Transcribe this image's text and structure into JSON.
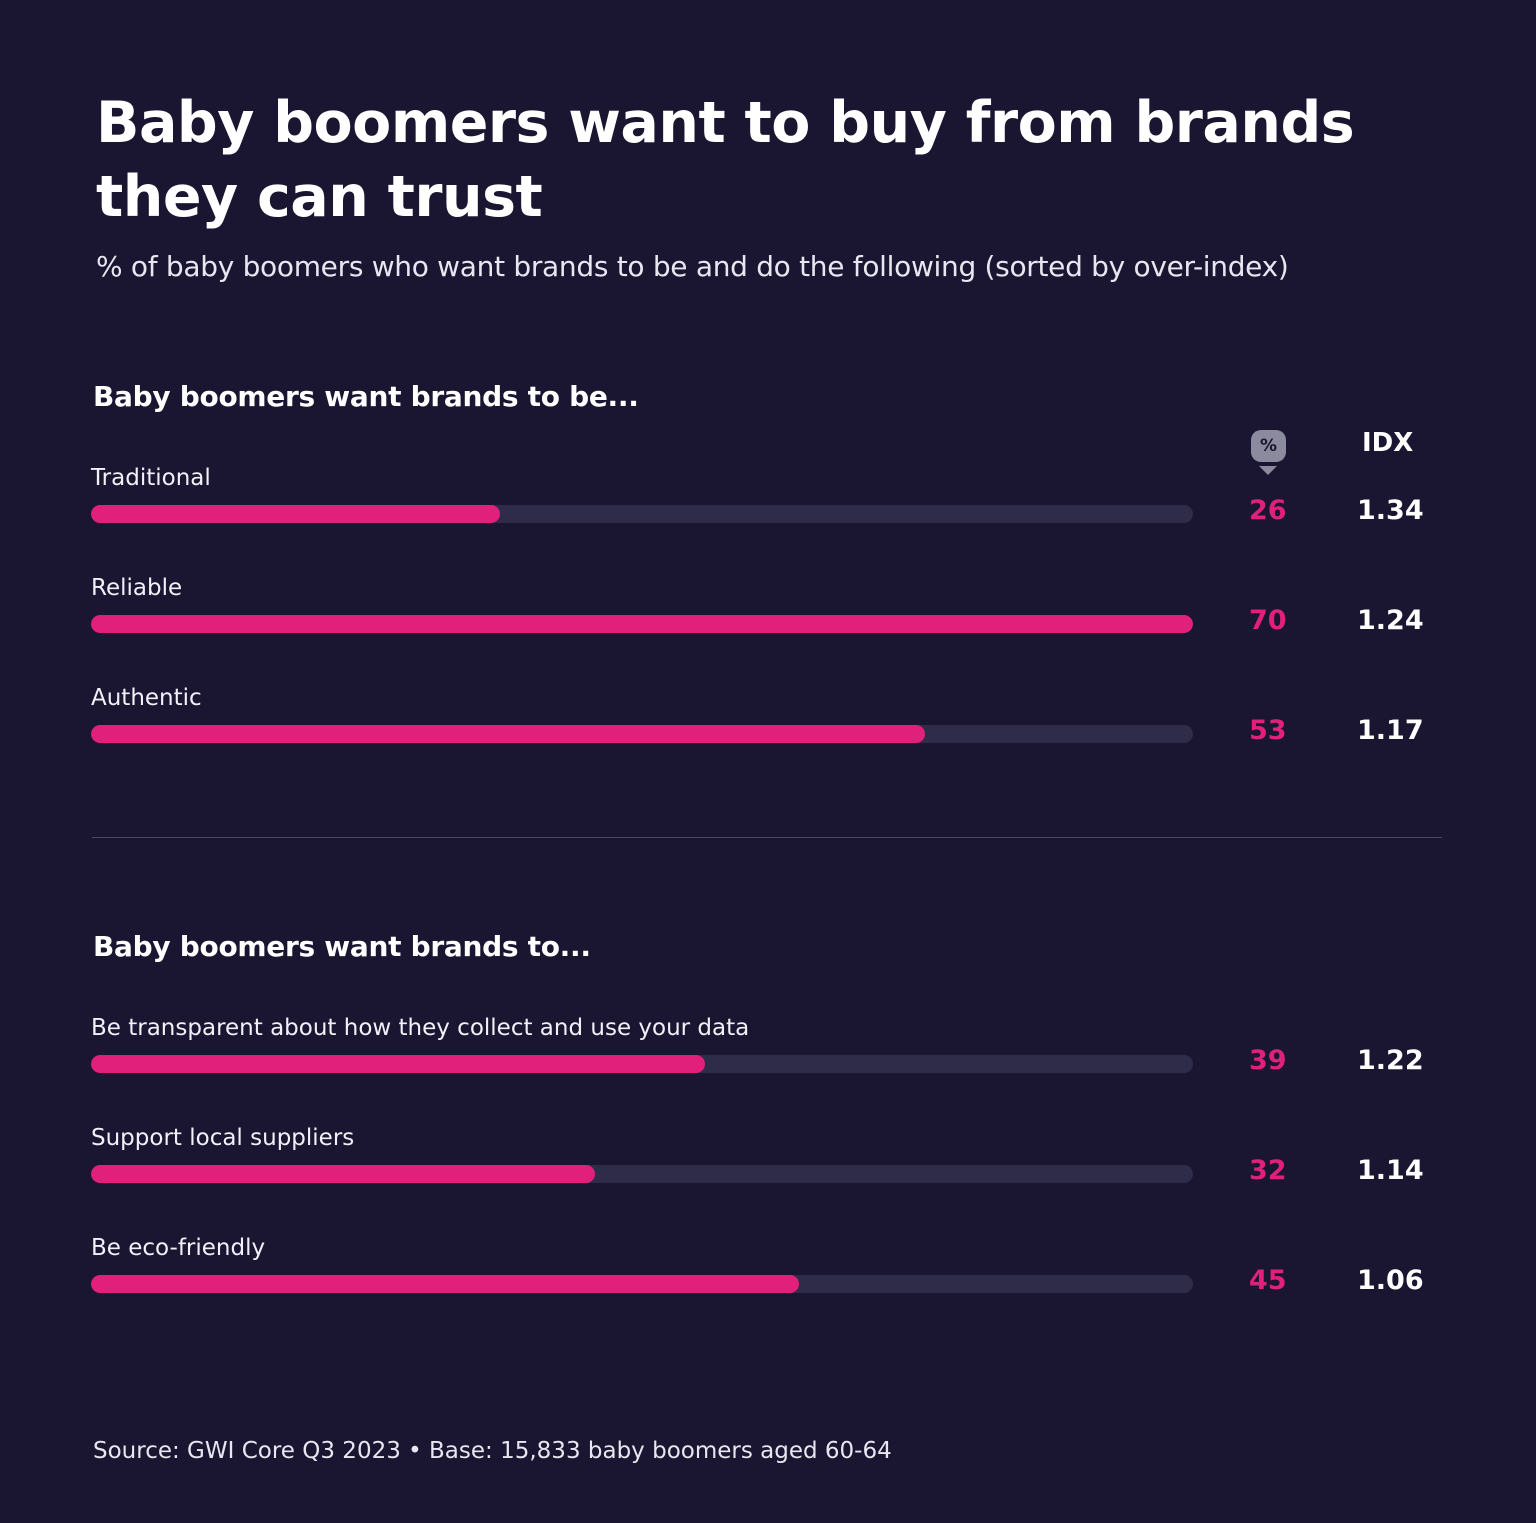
{
  "title": "Baby boomers want to buy from brands they can trust",
  "subtitle": "% of baby boomers who want brands to be and do the following (sorted by over-index)",
  "columns": {
    "percent_icon": "%",
    "idx": "IDX"
  },
  "colors": {
    "background": "#1a1530",
    "bar": "#e0207a",
    "track": "#2e2c48"
  },
  "chart_data": [
    {
      "type": "bar",
      "title": "Baby boomers want brands to be...",
      "xlim": [
        0,
        70
      ],
      "categories": [
        "Traditional",
        "Reliable",
        "Authentic"
      ],
      "values": [
        26,
        70,
        53
      ],
      "idx": [
        "1.34",
        "1.24",
        "1.17"
      ]
    },
    {
      "type": "bar",
      "title": "Baby boomers want brands to...",
      "xlim": [
        0,
        70
      ],
      "categories": [
        "Be transparent about how they collect and use your data",
        "Support local suppliers",
        "Be eco-friendly"
      ],
      "values": [
        39,
        32,
        45
      ],
      "idx": [
        "1.22",
        "1.14",
        "1.06"
      ]
    }
  ],
  "source": "Source: GWI Core Q3 2023 • Base: 15,833 baby boomers aged 60-64"
}
